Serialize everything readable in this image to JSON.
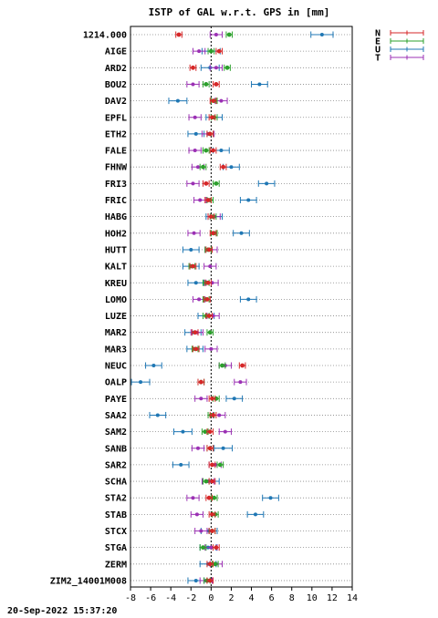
{
  "chart_data": {
    "type": "scatter",
    "title": "ISTP of GAL w.r.t. GPS in [mm]",
    "xlabel": "",
    "ylabel": "",
    "xlim": [
      -8,
      14
    ],
    "x_ticks": [
      -8,
      -6,
      -4,
      -2,
      0,
      2,
      4,
      6,
      8,
      10,
      12,
      14
    ],
    "grid": "horizontal dotted lines per station",
    "zero_line": "dashed vertical at 0",
    "legend_placement": "top-right",
    "colors": {
      "N": "#d62728",
      "E": "#2ca02c",
      "U": "#1f77b4",
      "T": "#9b30b4"
    },
    "series": [
      {
        "name": "N",
        "values": [
          -3.2,
          0.8,
          -1.8,
          0.5,
          0.2,
          0.1,
          -0.1,
          0.2,
          1.2,
          -0.5,
          -0.3,
          0.0,
          0.2,
          -0.2,
          -1.8,
          -0.3,
          -0.4,
          -0.2,
          -1.6,
          -1.5,
          3.1,
          -1.0,
          0.1,
          0.2,
          -0.1,
          -0.1,
          0.1,
          0.1,
          -0.2,
          0.1,
          0.1,
          0.5,
          -0.1,
          -0.1
        ]
      },
      {
        "name": "E",
        "values": [
          1.8,
          0.0,
          1.6,
          -0.5,
          0.3,
          0.3,
          -0.1,
          -0.5,
          -0.8,
          0.5,
          -0.1,
          0.2,
          0.3,
          -0.3,
          -1.9,
          -0.5,
          -0.5,
          -0.5,
          -0.1,
          -1.6,
          1.1,
          -1.0,
          0.5,
          0.0,
          -0.6,
          -0.1,
          0.9,
          -0.5,
          0.3,
          0.4,
          0.1,
          -0.8,
          0.4,
          -0.4
        ]
      },
      {
        "name": "U",
        "values": [
          11.0,
          0.0,
          -0.1,
          4.8,
          -3.3,
          0.3,
          -1.5,
          1.0,
          2.0,
          5.5,
          3.7,
          0.3,
          3.0,
          -2.0,
          -2.0,
          -1.5,
          3.7,
          -0.5,
          -1.8,
          -1.6,
          -5.7,
          -7.0,
          2.3,
          -5.3,
          -2.8,
          1.2,
          -3.0,
          0.0,
          5.9,
          4.4,
          -0.2,
          -0.3,
          -0.3,
          -1.5
        ]
      },
      {
        "name": "T",
        "values": [
          0.5,
          -1.2,
          0.5,
          -1.8,
          1.0,
          -1.6,
          -0.3,
          -1.6,
          -1.3,
          -1.8,
          -1.1,
          0.3,
          -1.7,
          0.0,
          -0.1,
          0.1,
          -1.2,
          0.2,
          -1.4,
          0.0,
          1.4,
          2.9,
          -1.0,
          0.8,
          1.4,
          -1.3,
          0.4,
          -0.3,
          -1.8,
          -1.4,
          -1.0,
          0.0,
          0.5,
          -0.5
        ]
      }
    ],
    "errors": [
      {
        "name": "N",
        "values": [
          0.3,
          0.3,
          0.3,
          0.3,
          0.3,
          0.3,
          0.3,
          0.3,
          0.3,
          0.3,
          0.3,
          0.3,
          0.3,
          0.3,
          0.3,
          0.3,
          0.3,
          0.3,
          0.3,
          0.3,
          0.3,
          0.3,
          0.3,
          0.3,
          0.3,
          0.3,
          0.3,
          0.3,
          0.3,
          0.3,
          0.3,
          0.3,
          0.3,
          0.3
        ]
      },
      {
        "name": "E",
        "values": [
          0.3,
          0.3,
          0.3,
          0.3,
          0.3,
          0.3,
          0.3,
          0.3,
          0.3,
          0.3,
          0.3,
          0.3,
          0.3,
          0.3,
          0.3,
          0.3,
          0.3,
          0.3,
          0.3,
          0.3,
          0.3,
          0.3,
          0.3,
          0.3,
          0.3,
          0.3,
          0.3,
          0.3,
          0.3,
          0.3,
          0.3,
          0.3,
          0.3,
          0.3
        ]
      },
      {
        "name": "U",
        "values": [
          1.1,
          0.9,
          0.9,
          0.8,
          0.9,
          0.8,
          0.8,
          0.8,
          0.8,
          0.8,
          0.8,
          0.8,
          0.8,
          0.8,
          0.8,
          0.8,
          0.8,
          0.8,
          0.8,
          0.8,
          0.8,
          0.9,
          0.8,
          0.8,
          0.9,
          0.9,
          0.8,
          0.8,
          0.8,
          0.8,
          0.8,
          0.8,
          0.8,
          0.8
        ]
      },
      {
        "name": "T",
        "values": [
          0.6,
          0.6,
          0.6,
          0.6,
          0.6,
          0.6,
          0.6,
          0.6,
          0.6,
          0.6,
          0.6,
          0.6,
          0.6,
          0.6,
          0.6,
          0.6,
          0.6,
          0.6,
          0.6,
          0.6,
          0.6,
          0.6,
          0.6,
          0.6,
          0.6,
          0.6,
          0.6,
          0.6,
          0.6,
          0.6,
          0.6,
          0.6,
          0.6,
          0.6
        ]
      }
    ],
    "categories": [
      "1214.000",
      "AIGE",
      "ARD2",
      "BOU2",
      "DAV2",
      "EPFL",
      "ETH2",
      "FALE",
      "FHNW",
      "FRI3",
      "FRIC",
      "HABG",
      "HOH2",
      "HUTT",
      "KALT",
      "KREU",
      "LOMO",
      "LUZE",
      "MAR2",
      "MAR3",
      "NEUC",
      "OALP",
      "PAYE",
      "SAA2",
      "SAM2",
      "SANB",
      "SAR2",
      "SCHA",
      "STA2",
      "STAB",
      "STCX",
      "STGA",
      "ZERM",
      "ZIM2_14001M008"
    ]
  },
  "timestamp": "20-Sep-2022 15:37:20"
}
